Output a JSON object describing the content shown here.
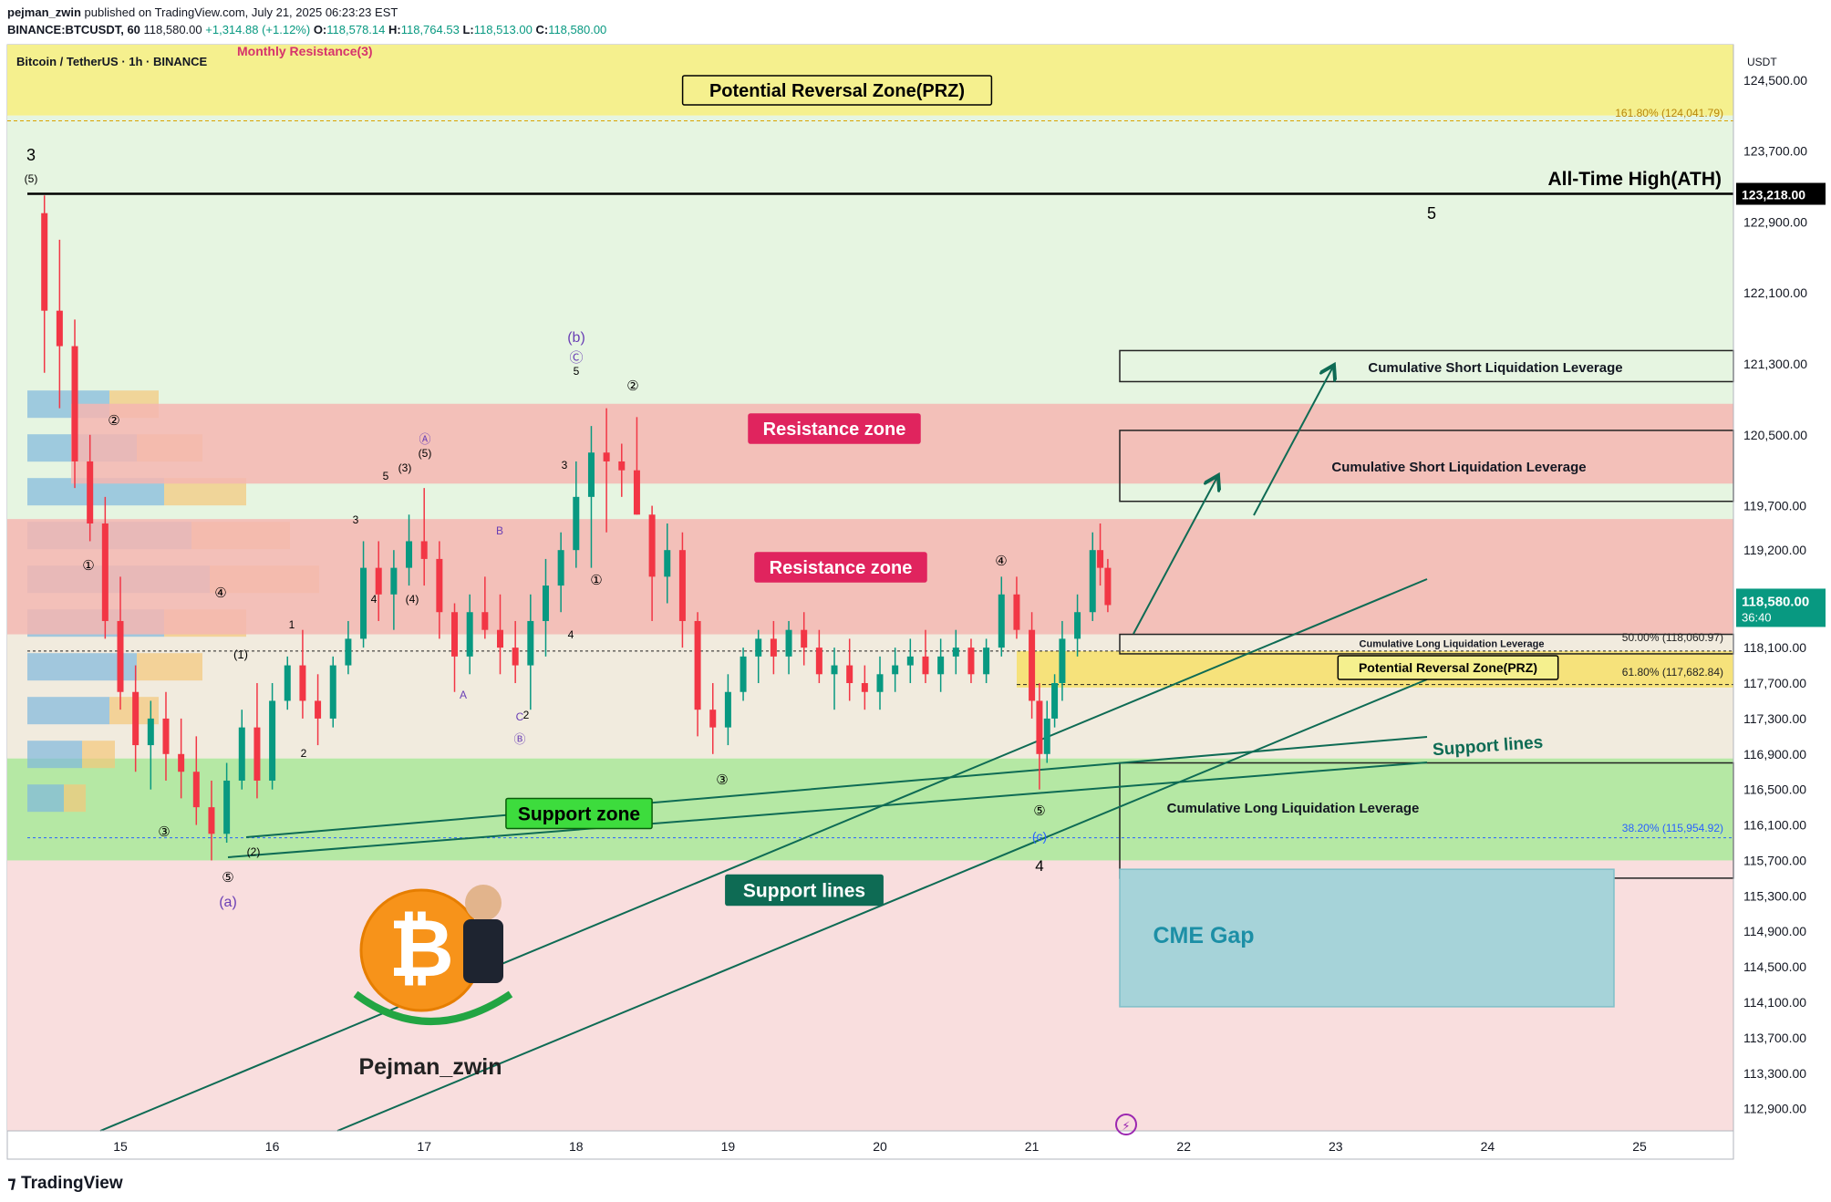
{
  "header": {
    "author": "pejman_zwin",
    "published": "published on TradingView.com, July 21, 2025 06:23:23 EST",
    "symbol": "BINANCE:BTCUSDT, 60",
    "last": "118,580.00",
    "change": "+1,314.88 (+1.12%)",
    "open_label": "O:",
    "open": "118,578.14",
    "high_label": "H:",
    "high": "118,764.53",
    "low_label": "L:",
    "low": "118,513.00",
    "close_label": "C:",
    "close": "118,580.00"
  },
  "chart_title": "Bitcoin / TetherUS · 1h · BINANCE",
  "footer_brand": "TradingView",
  "colors": {
    "up": "#089981",
    "down": "#f23645",
    "resistance": "#f4b6b2",
    "prz": "#f5f08e",
    "support": "#b5e8a4",
    "cme": "#a6d3d9",
    "accent_line": "#0e6b54"
  },
  "chart_data": {
    "type": "candlestick",
    "y_axis": {
      "unit": "USDT",
      "ticks": [
        "124,500.00",
        "123,700.00",
        "122,900.00",
        "122,100.00",
        "121,300.00",
        "120,500.00",
        "119,700.00",
        "119,200.00",
        "118,700.00",
        "118,100.00",
        "117,700.00",
        "117,300.00",
        "116,900.00",
        "116,500.00",
        "116,100.00",
        "115,700.00",
        "115,300.00",
        "114,900.00",
        "114,500.00",
        "114,100.00",
        "113,700.00",
        "113,300.00",
        "112,900.00"
      ],
      "ath_tag": "123,218.00",
      "price_tag": "118,580.00",
      "countdown": "36:40",
      "ylim": [
        112800,
        124800
      ]
    },
    "x_axis": {
      "ticks": [
        "15",
        "16",
        "17",
        "18",
        "19",
        "20",
        "21",
        "22",
        "23",
        "24",
        "25"
      ]
    },
    "candles": [
      [
        14.5,
        123000,
        123200,
        121200,
        121900
      ],
      [
        14.6,
        121900,
        122700,
        120800,
        121500
      ],
      [
        14.7,
        121500,
        121800,
        119900,
        120200
      ],
      [
        14.8,
        120200,
        120500,
        119300,
        119500
      ],
      [
        14.9,
        119500,
        119800,
        118200,
        118400
      ],
      [
        15.0,
        118400,
        118900,
        117400,
        117600
      ],
      [
        15.1,
        117600,
        117900,
        116700,
        117000
      ],
      [
        15.2,
        117000,
        117500,
        116500,
        117300
      ],
      [
        15.3,
        117300,
        117600,
        116600,
        116900
      ],
      [
        15.4,
        116900,
        117300,
        116400,
        116700
      ],
      [
        15.5,
        116700,
        117100,
        116100,
        116300
      ],
      [
        15.6,
        116300,
        116600,
        115700,
        116000
      ],
      [
        15.7,
        116000,
        116800,
        115900,
        116600
      ],
      [
        15.8,
        116600,
        117400,
        116500,
        117200
      ],
      [
        15.9,
        117200,
        117700,
        116400,
        116600
      ],
      [
        16.0,
        116600,
        117700,
        116500,
        117500
      ],
      [
        16.1,
        117500,
        118000,
        117400,
        117900
      ],
      [
        16.2,
        117900,
        118300,
        117300,
        117500
      ],
      [
        16.3,
        117500,
        117800,
        117000,
        117300
      ],
      [
        16.4,
        117300,
        118000,
        117200,
        117900
      ],
      [
        16.5,
        117900,
        118400,
        117800,
        118200
      ],
      [
        16.6,
        118200,
        119300,
        118100,
        119000
      ],
      [
        16.7,
        119000,
        119300,
        118400,
        118700
      ],
      [
        16.8,
        118700,
        119200,
        118300,
        119000
      ],
      [
        16.9,
        119000,
        119600,
        118800,
        119300
      ],
      [
        17.0,
        119300,
        119900,
        118800,
        119100
      ],
      [
        17.1,
        119100,
        119300,
        118200,
        118500
      ],
      [
        17.2,
        118500,
        118600,
        117600,
        118000
      ],
      [
        17.3,
        118000,
        118700,
        117800,
        118500
      ],
      [
        17.4,
        118500,
        118900,
        118200,
        118300
      ],
      [
        17.5,
        118300,
        118700,
        117800,
        118100
      ],
      [
        17.6,
        118100,
        118400,
        117700,
        117900
      ],
      [
        17.7,
        117900,
        118700,
        117400,
        118400
      ],
      [
        17.8,
        118400,
        119100,
        118000,
        118800
      ],
      [
        17.9,
        118800,
        119400,
        118500,
        119200
      ],
      [
        18.0,
        119200,
        120200,
        119000,
        119800
      ],
      [
        18.1,
        119800,
        120600,
        119000,
        120300
      ],
      [
        18.2,
        120300,
        120800,
        119400,
        120200
      ],
      [
        18.3,
        120200,
        120400,
        119800,
        120100
      ],
      [
        18.4,
        120100,
        120700,
        119600,
        119600
      ],
      [
        18.5,
        119600,
        119700,
        118400,
        118900
      ],
      [
        18.6,
        118900,
        119500,
        118600,
        119200
      ],
      [
        18.7,
        119200,
        119400,
        118100,
        118400
      ],
      [
        18.8,
        118400,
        118500,
        117100,
        117400
      ],
      [
        18.9,
        117400,
        117700,
        116900,
        117200
      ],
      [
        19.0,
        117200,
        117800,
        117000,
        117600
      ],
      [
        19.1,
        117600,
        118100,
        117500,
        118000
      ],
      [
        19.2,
        118000,
        118300,
        117700,
        118200
      ],
      [
        19.3,
        118200,
        118400,
        117800,
        118000
      ],
      [
        19.4,
        118000,
        118400,
        117800,
        118300
      ],
      [
        19.5,
        118300,
        118500,
        117900,
        118100
      ],
      [
        19.6,
        118100,
        118300,
        117700,
        117800
      ],
      [
        19.7,
        117800,
        118100,
        117400,
        117900
      ],
      [
        19.8,
        117900,
        118200,
        117500,
        117700
      ],
      [
        19.9,
        117700,
        117900,
        117400,
        117600
      ],
      [
        20.0,
        117600,
        118000,
        117400,
        117800
      ],
      [
        20.1,
        117800,
        118100,
        117600,
        117900
      ],
      [
        20.2,
        117900,
        118200,
        117700,
        118000
      ],
      [
        20.3,
        118000,
        118300,
        117700,
        117800
      ],
      [
        20.4,
        117800,
        118200,
        117600,
        118000
      ],
      [
        20.5,
        118000,
        118300,
        117800,
        118100
      ],
      [
        20.6,
        118100,
        118200,
        117700,
        117800
      ],
      [
        20.7,
        117800,
        118200,
        117700,
        118100
      ],
      [
        20.8,
        118100,
        118900,
        118000,
        118700
      ],
      [
        20.9,
        118700,
        118900,
        118200,
        118300
      ],
      [
        21.0,
        118300,
        118500,
        117300,
        117500
      ],
      [
        21.05,
        117500,
        117700,
        116500,
        116900
      ],
      [
        21.1,
        116900,
        117500,
        116800,
        117300
      ],
      [
        21.15,
        117300,
        117800,
        117200,
        117700
      ],
      [
        21.2,
        117700,
        118400,
        117500,
        118200
      ],
      [
        21.3,
        118200,
        118700,
        118000,
        118500
      ],
      [
        21.4,
        118500,
        119400,
        118400,
        119200
      ],
      [
        21.45,
        119200,
        119500,
        118800,
        119000
      ],
      [
        21.5,
        119000,
        119100,
        118500,
        118580
      ]
    ],
    "horizontal_levels": [
      {
        "label": "All-Time High(ATH)",
        "price": 123218
      },
      {
        "label": "161.80% (124,041.79)",
        "price": 124041.79
      },
      {
        "label": "50.00% (118,060.97)",
        "price": 118060.97
      },
      {
        "label": "61.80% (117,682.84)",
        "price": 117682.84
      },
      {
        "label": "38.20% (115,954.92)",
        "price": 115954.92
      }
    ],
    "zones": [
      {
        "label": "Potential Reversal Zone(PRZ)",
        "from": 124100,
        "to": 124800
      },
      {
        "label": "Resistance zone",
        "from": 119950,
        "to": 120850
      },
      {
        "label": "Resistance zone",
        "from": 118250,
        "to": 119550
      },
      {
        "label": "Support zone",
        "from": 115700,
        "to": 116850
      },
      {
        "label": "Potential Reversal Zone(PRZ)",
        "from": 117650,
        "to": 118060
      }
    ],
    "boxes": [
      {
        "label": "Cumulative Short Liquidation Leverage",
        "from": 121100,
        "to": 121450
      },
      {
        "label": "Cumulative Short Liquidation Leverage",
        "from": 119750,
        "to": 120550
      },
      {
        "label": "Cumulative Long Liquidation Leverage",
        "from": 118030,
        "to": 118250
      },
      {
        "label": "Cumulative Long Liquidation Leverage",
        "from": 115500,
        "to": 116800
      },
      {
        "label": "CME Gap",
        "from": 114050,
        "to": 115600
      }
    ],
    "annotations": {
      "monthly_resistance": "Monthly Resistance(3)",
      "support_lines_a": "Support lines",
      "support_lines_b": "Support lines",
      "wave_labels": [
        "3",
        "(5)",
        "②",
        "①",
        "④",
        "③",
        "⑤",
        "(a)",
        "(1)",
        "(2)",
        "1",
        "2",
        "3",
        "4",
        "5",
        "(3)",
        "(4)",
        "Ⓐ",
        "(5)",
        "A",
        "B",
        "C",
        "Ⓑ",
        "2",
        "(b)",
        "Ⓒ",
        "5",
        "3",
        "①",
        "4",
        "②",
        "③",
        "④",
        "⑤",
        "(c)",
        "4",
        "5"
      ]
    },
    "watermark": "Pejman_zwin"
  }
}
